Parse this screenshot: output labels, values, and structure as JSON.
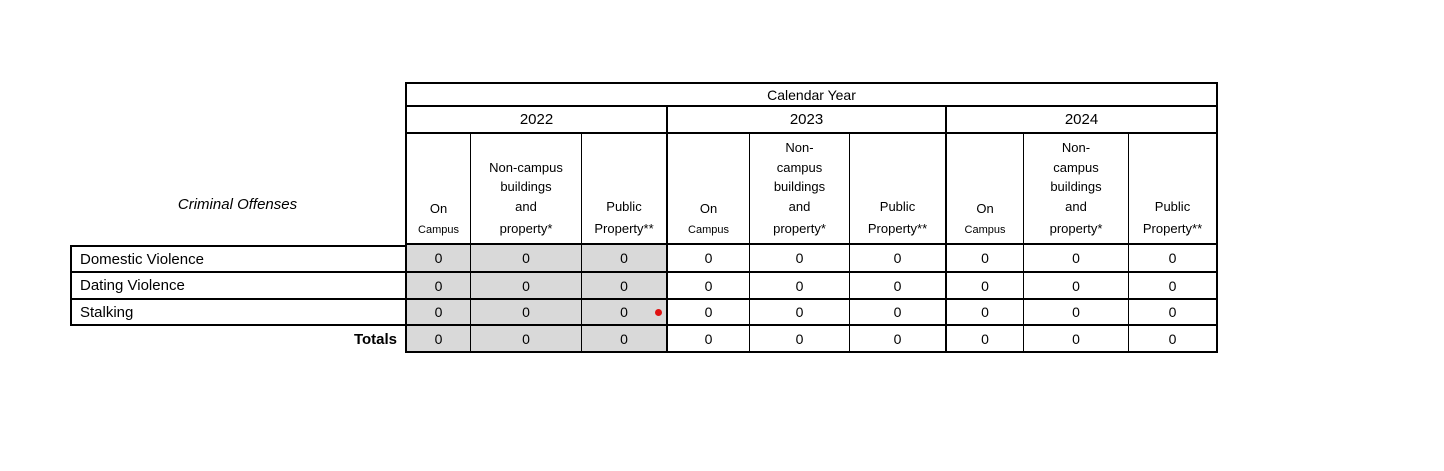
{
  "table": {
    "title_spanner": "Calendar Year",
    "corner_label": "Criminal Offenses",
    "column_groups": [
      {
        "year": "2022",
        "columns": [
          {
            "line1": "On",
            "line2": "Campus"
          },
          {
            "line1": "Non-campus\nbuildings\nand",
            "line2": "property*"
          },
          {
            "line1": "Public",
            "line2": "Property**"
          }
        ]
      },
      {
        "year": "2023",
        "columns": [
          {
            "line1": "On",
            "line2": "Campus"
          },
          {
            "line1": "Non-\ncampus\nbuildings\nand",
            "line2": "property*"
          },
          {
            "line1": "Public",
            "line2": "Property**"
          }
        ]
      },
      {
        "year": "2024",
        "columns": [
          {
            "line1": "On",
            "line2": "Campus"
          },
          {
            "line1": "Non-\ncampus\nbuildings\nand",
            "line2": "property*"
          },
          {
            "line1": "Public",
            "line2": "Property**"
          }
        ]
      }
    ],
    "rows": [
      {
        "label": "Domestic Violence",
        "values": [
          "0",
          "0",
          "0",
          "0",
          "0",
          "0",
          "0",
          "0",
          "0"
        ]
      },
      {
        "label": "Dating Violence",
        "values": [
          "0",
          "0",
          "0",
          "0",
          "0",
          "0",
          "0",
          "0",
          "0"
        ]
      },
      {
        "label": "Stalking",
        "values": [
          "0",
          "0",
          "0",
          "0",
          "0",
          "0",
          "0",
          "0",
          "0"
        ],
        "marker": "red-annotation-dot"
      }
    ],
    "totals_row": {
      "label": "Totals",
      "values": [
        "0",
        "0",
        "0",
        "0",
        "0",
        "0",
        "0",
        "0",
        "0"
      ]
    },
    "colors": {
      "shaded_column_bg": "#d9d9d9",
      "border": "#000000",
      "text": "#000000",
      "annotation_dot": "#e01212"
    }
  }
}
